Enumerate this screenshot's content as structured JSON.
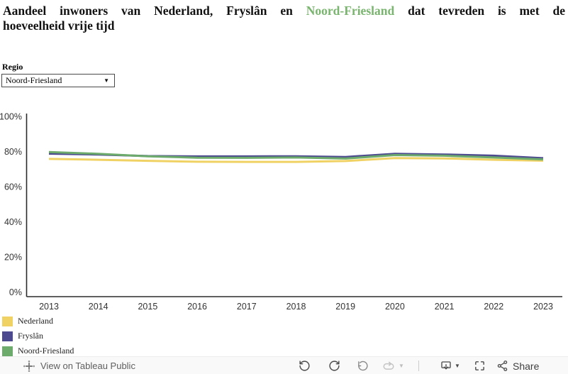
{
  "title": {
    "line1_pre": "Aandeel inwoners van Nederland, Fryslân en",
    "highlight": "Noord-Friesland",
    "line1_post": "dat tevreden is met de",
    "line2": "hoeveelheid vrije tijd",
    "highlight_color": "#79b56e"
  },
  "filter": {
    "label": "Regio",
    "value": "Noord-Friesland"
  },
  "icons": {
    "dropdown_caret": "▼",
    "toolbar_caret": "▼"
  },
  "chart_data": {
    "type": "line",
    "categories": [
      "2013",
      "2014",
      "2015",
      "2016",
      "2017",
      "2018",
      "2019",
      "2020",
      "2021",
      "2022",
      "2023"
    ],
    "series": [
      {
        "name": "Nederland",
        "color": "#f0d264",
        "values": [
          76.0,
          75.5,
          74.9,
          74.4,
          74.3,
          74.3,
          74.8,
          76.5,
          76.3,
          75.5,
          75.0
        ]
      },
      {
        "name": "Fryslân",
        "color": "#4d4a8f",
        "values": [
          79.0,
          78.5,
          77.6,
          77.4,
          77.4,
          77.5,
          77.1,
          78.9,
          78.5,
          77.8,
          76.4
        ]
      },
      {
        "name": "Noord-Friesland",
        "color": "#6cab6c",
        "values": [
          79.9,
          78.9,
          77.5,
          76.7,
          76.6,
          76.8,
          76.2,
          78.2,
          77.8,
          76.8,
          75.7
        ]
      }
    ],
    "title": "Aandeel inwoners van Nederland, Fryslân en Noord-Friesland dat tevreden is met de hoeveelheid vrije tijd",
    "xlabel": "",
    "ylabel": "",
    "ylim": [
      0,
      100
    ],
    "yticks": [
      0,
      20,
      40,
      60,
      80,
      100
    ],
    "ytick_suffix": "%",
    "grid": false,
    "legend_position": "bottom-left"
  },
  "toolbar": {
    "view_label": "View on Tableau Public",
    "share_label": "Share"
  }
}
